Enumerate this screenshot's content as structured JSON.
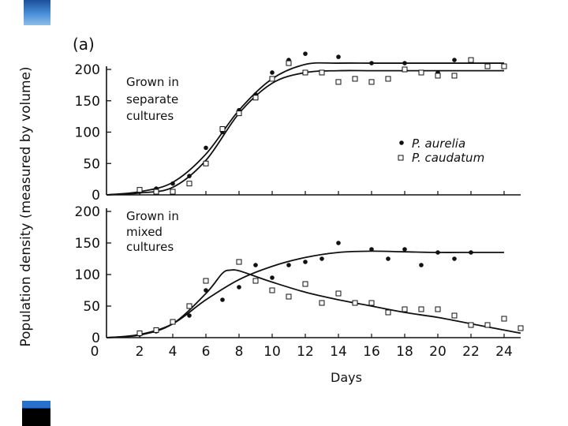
{
  "colors": {
    "ink": "#111111",
    "accent_blue": "#2a6fc9",
    "accent_light": "#4a90d9",
    "block": "#000000"
  },
  "chart_data": {
    "type": "scatter",
    "panel_label": "(a)",
    "ylabel": "Population density (measured by volume)",
    "xlabel": "Days",
    "x_ticks": [
      "2",
      "4",
      "6",
      "8",
      "10",
      "12",
      "14",
      "16",
      "18",
      "20",
      "22",
      "24"
    ],
    "x_zero": "0",
    "xlim": [
      0,
      25
    ],
    "legend": [
      {
        "marker": "filled-circle",
        "label": "P. aurelia"
      },
      {
        "marker": "open-square",
        "label": "P. caudatum"
      }
    ],
    "panels": [
      {
        "id": "separate",
        "caption": [
          "Grown in",
          "separate",
          "cultures"
        ],
        "ylim": [
          0,
          200
        ],
        "y_ticks": [
          "0",
          "50",
          "100",
          "150",
          "200"
        ],
        "series": [
          {
            "name": "P. aurelia",
            "points": [
              [
                2,
                5
              ],
              [
                3,
                10
              ],
              [
                4,
                18
              ],
              [
                5,
                30
              ],
              [
                6,
                75
              ],
              [
                7,
                100
              ],
              [
                8,
                135
              ],
              [
                9,
                160
              ],
              [
                10,
                195
              ],
              [
                11,
                215
              ],
              [
                12,
                225
              ],
              [
                14,
                220
              ],
              [
                16,
                210
              ],
              [
                18,
                210
              ],
              [
                20,
                195
              ],
              [
                21,
                215
              ]
            ],
            "curve": [
              [
                0,
                0
              ],
              [
                2,
                5
              ],
              [
                4,
                20
              ],
              [
                6,
                65
              ],
              [
                8,
                135
              ],
              [
                10,
                185
              ],
              [
                12,
                208
              ],
              [
                14,
                210
              ],
              [
                16,
                210
              ],
              [
                18,
                210
              ],
              [
                20,
                210
              ],
              [
                22,
                210
              ],
              [
                24,
                210
              ]
            ]
          },
          {
            "name": "P. caudatum",
            "points": [
              [
                2,
                8
              ],
              [
                3,
                5
              ],
              [
                4,
                5
              ],
              [
                5,
                18
              ],
              [
                6,
                50
              ],
              [
                7,
                105
              ],
              [
                8,
                130
              ],
              [
                9,
                155
              ],
              [
                10,
                185
              ],
              [
                11,
                210
              ],
              [
                12,
                195
              ],
              [
                13,
                195
              ],
              [
                14,
                180
              ],
              [
                15,
                185
              ],
              [
                16,
                180
              ],
              [
                17,
                185
              ],
              [
                18,
                200
              ],
              [
                19,
                195
              ],
              [
                20,
                190
              ],
              [
                21,
                190
              ],
              [
                22,
                215
              ],
              [
                23,
                205
              ],
              [
                24,
                205
              ]
            ],
            "curve": [
              [
                0,
                0
              ],
              [
                2,
                3
              ],
              [
                4,
                12
              ],
              [
                6,
                55
              ],
              [
                8,
                130
              ],
              [
                10,
                178
              ],
              [
                12,
                195
              ],
              [
                14,
                198
              ],
              [
                16,
                198
              ],
              [
                18,
                198
              ],
              [
                20,
                198
              ],
              [
                22,
                198
              ],
              [
                24,
                198
              ]
            ]
          }
        ]
      },
      {
        "id": "mixed",
        "caption": [
          "Grown in",
          "mixed",
          "cultures"
        ],
        "ylim": [
          0,
          200
        ],
        "y_ticks": [
          "0",
          "50",
          "100",
          "150",
          "200"
        ],
        "series": [
          {
            "name": "P. aurelia",
            "points": [
              [
                2,
                5
              ],
              [
                3,
                10
              ],
              [
                4,
                25
              ],
              [
                5,
                35
              ],
              [
                6,
                75
              ],
              [
                7,
                60
              ],
              [
                8,
                80
              ],
              [
                9,
                115
              ],
              [
                10,
                95
              ],
              [
                11,
                115
              ],
              [
                12,
                120
              ],
              [
                13,
                125
              ],
              [
                14,
                150
              ],
              [
                16,
                140
              ],
              [
                17,
                125
              ],
              [
                18,
                140
              ],
              [
                19,
                115
              ],
              [
                20,
                135
              ],
              [
                21,
                125
              ],
              [
                22,
                135
              ]
            ],
            "curve": [
              [
                0,
                0
              ],
              [
                2,
                5
              ],
              [
                4,
                22
              ],
              [
                6,
                60
              ],
              [
                8,
                92
              ],
              [
                10,
                113
              ],
              [
                12,
                127
              ],
              [
                14,
                135
              ],
              [
                16,
                137
              ],
              [
                18,
                136
              ],
              [
                20,
                135
              ],
              [
                22,
                135
              ],
              [
                24,
                135
              ]
            ]
          },
          {
            "name": "P. caudatum",
            "points": [
              [
                2,
                7
              ],
              [
                3,
                12
              ],
              [
                4,
                25
              ],
              [
                5,
                50
              ],
              [
                6,
                90
              ],
              [
                8,
                120
              ],
              [
                9,
                90
              ],
              [
                10,
                75
              ],
              [
                11,
                65
              ],
              [
                12,
                85
              ],
              [
                13,
                55
              ],
              [
                14,
                70
              ],
              [
                15,
                55
              ],
              [
                16,
                55
              ],
              [
                17,
                40
              ],
              [
                18,
                45
              ],
              [
                19,
                45
              ],
              [
                20,
                45
              ],
              [
                21,
                35
              ],
              [
                22,
                20
              ],
              [
                23,
                20
              ],
              [
                24,
                30
              ],
              [
                25,
                15
              ]
            ],
            "curve": [
              [
                0,
                0
              ],
              [
                2,
                4
              ],
              [
                4,
                22
              ],
              [
                6,
                70
              ],
              [
                7,
                102
              ],
              [
                7.5,
                107
              ],
              [
                8,
                106
              ],
              [
                9,
                97
              ],
              [
                10,
                88
              ],
              [
                12,
                72
              ],
              [
                14,
                60
              ],
              [
                16,
                50
              ],
              [
                18,
                40
              ],
              [
                20,
                32
              ],
              [
                22,
                22
              ],
              [
                24,
                12
              ],
              [
                25,
                7
              ]
            ]
          }
        ]
      }
    ]
  }
}
